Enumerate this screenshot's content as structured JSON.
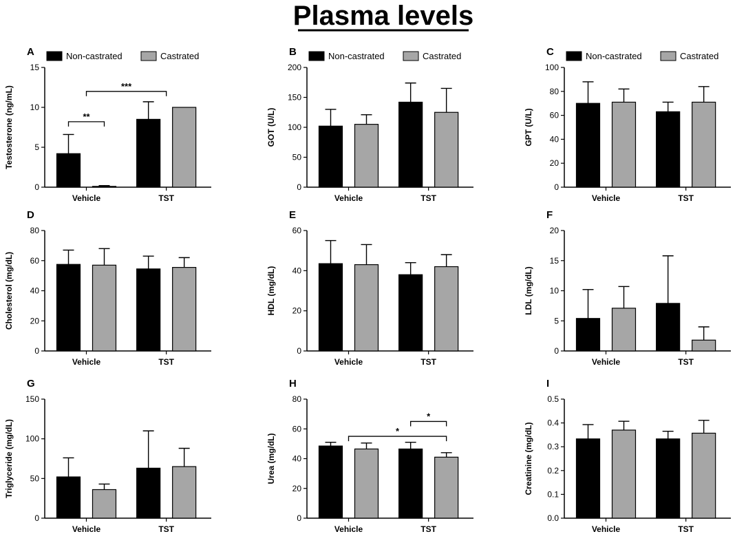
{
  "figure_title": "Plasma levels",
  "colors": {
    "non_castrated": "#000000",
    "castrated": "#a6a6a6",
    "axis": "#000000"
  },
  "legend": {
    "non_castrated": "Non-castrated",
    "castrated": "Castrated"
  },
  "chart_data": [
    {
      "panel": "A",
      "type": "bar",
      "ylabel": "Testosterone (ng/mL)",
      "categories": [
        "Vehicle",
        "TST"
      ],
      "ylim": [
        0,
        15
      ],
      "yticks": [
        0,
        5,
        10,
        15
      ],
      "series": [
        {
          "name": "Non-castrated",
          "values": [
            4.2,
            8.5
          ],
          "errors": [
            2.4,
            2.2
          ]
        },
        {
          "name": "Castrated",
          "values": [
            0.1,
            10.0
          ],
          "errors": [
            0.1,
            0
          ]
        }
      ],
      "legend_shown": true,
      "significance": [
        {
          "label": "**",
          "from": "Vehicle|Non-castrated",
          "to": "Vehicle|Castrated",
          "level": 8.2
        },
        {
          "label": "***",
          "from": "Vehicle",
          "to": "TST",
          "level": 12.0
        }
      ]
    },
    {
      "panel": "B",
      "type": "bar",
      "ylabel": "GOT (U/L)",
      "categories": [
        "Vehicle",
        "TST"
      ],
      "ylim": [
        0,
        200
      ],
      "yticks": [
        0,
        50,
        100,
        150,
        200
      ],
      "series": [
        {
          "name": "Non-castrated",
          "values": [
            102,
            142
          ],
          "errors": [
            28,
            32
          ]
        },
        {
          "name": "Castrated",
          "values": [
            105,
            125
          ],
          "errors": [
            16,
            40
          ]
        }
      ],
      "legend_shown": true,
      "significance": []
    },
    {
      "panel": "C",
      "type": "bar",
      "ylabel": "GPT (U/L)",
      "categories": [
        "Vehicle",
        "TST"
      ],
      "ylim": [
        0,
        100
      ],
      "yticks": [
        0,
        20,
        40,
        60,
        80,
        100
      ],
      "series": [
        {
          "name": "Non-castrated",
          "values": [
            70,
            63
          ],
          "errors": [
            18,
            8
          ]
        },
        {
          "name": "Castrated",
          "values": [
            71,
            71
          ],
          "errors": [
            11,
            13
          ]
        }
      ],
      "legend_shown": true,
      "significance": []
    },
    {
      "panel": "D",
      "type": "bar",
      "ylabel": "Cholesterol (mg/dL)",
      "categories": [
        "Vehicle",
        "TST"
      ],
      "ylim": [
        0,
        80
      ],
      "yticks": [
        0,
        20,
        40,
        60,
        80
      ],
      "series": [
        {
          "name": "Non-castrated",
          "values": [
            57.5,
            54.5
          ],
          "errors": [
            9.5,
            8.5
          ]
        },
        {
          "name": "Castrated",
          "values": [
            57,
            55.5
          ],
          "errors": [
            11,
            6.5
          ]
        }
      ],
      "legend_shown": false,
      "significance": []
    },
    {
      "panel": "E",
      "type": "bar",
      "ylabel": "HDL (mg/dL)",
      "categories": [
        "Vehicle",
        "TST"
      ],
      "ylim": [
        0,
        60
      ],
      "yticks": [
        0,
        20,
        40,
        60
      ],
      "series": [
        {
          "name": "Non-castrated",
          "values": [
            43.5,
            38
          ],
          "errors": [
            11.5,
            6
          ]
        },
        {
          "name": "Castrated",
          "values": [
            43,
            42
          ],
          "errors": [
            10,
            6
          ]
        }
      ],
      "legend_shown": false,
      "significance": []
    },
    {
      "panel": "F",
      "type": "bar",
      "ylabel": "LDL (mg/dL)",
      "categories": [
        "Vehicle",
        "TST"
      ],
      "ylim": [
        0,
        20
      ],
      "yticks": [
        0,
        5,
        10,
        15,
        20
      ],
      "series": [
        {
          "name": "Non-castrated",
          "values": [
            5.4,
            7.9
          ],
          "errors": [
            4.8,
            7.9
          ]
        },
        {
          "name": "Castrated",
          "values": [
            7.1,
            1.8
          ],
          "errors": [
            3.6,
            2.2
          ]
        }
      ],
      "legend_shown": false,
      "significance": []
    },
    {
      "panel": "G",
      "type": "bar",
      "ylabel": "Triglyceride (mg/dL)",
      "categories": [
        "Vehicle",
        "TST"
      ],
      "ylim": [
        0,
        150
      ],
      "yticks": [
        0,
        50,
        100,
        150
      ],
      "series": [
        {
          "name": "Non-castrated",
          "values": [
            52,
            63
          ],
          "errors": [
            24,
            47
          ]
        },
        {
          "name": "Castrated",
          "values": [
            36,
            65
          ],
          "errors": [
            7,
            23
          ]
        }
      ],
      "legend_shown": false,
      "significance": []
    },
    {
      "panel": "H",
      "type": "bar",
      "ylabel": "Urea (mg/dL)",
      "categories": [
        "Vehicle",
        "TST"
      ],
      "ylim": [
        0,
        80
      ],
      "yticks": [
        0,
        20,
        40,
        60,
        80
      ],
      "series": [
        {
          "name": "Non-castrated",
          "values": [
            48.5,
            46.5
          ],
          "errors": [
            2.5,
            4.5
          ]
        },
        {
          "name": "Castrated",
          "values": [
            46.5,
            41
          ],
          "errors": [
            4,
            3
          ]
        }
      ],
      "legend_shown": false,
      "significance": [
        {
          "label": "*",
          "from": "TST|Non-castrated",
          "to": "TST|Castrated",
          "level": 65
        },
        {
          "label": "*",
          "from": "Vehicle",
          "to": "TST|Castrated",
          "level": 55
        }
      ]
    },
    {
      "panel": "I",
      "type": "bar",
      "ylabel": "Creatinine (mg/dL)",
      "categories": [
        "Vehicle",
        "TST"
      ],
      "ylim": [
        0,
        0.5
      ],
      "yticks": [
        0.0,
        0.1,
        0.2,
        0.3,
        0.4,
        0.5
      ],
      "series": [
        {
          "name": "Non-castrated",
          "values": [
            0.333,
            0.333
          ],
          "errors": [
            0.06,
            0.032
          ]
        },
        {
          "name": "Castrated",
          "values": [
            0.37,
            0.357
          ],
          "errors": [
            0.037,
            0.054
          ]
        }
      ],
      "legend_shown": false,
      "significance": []
    }
  ]
}
